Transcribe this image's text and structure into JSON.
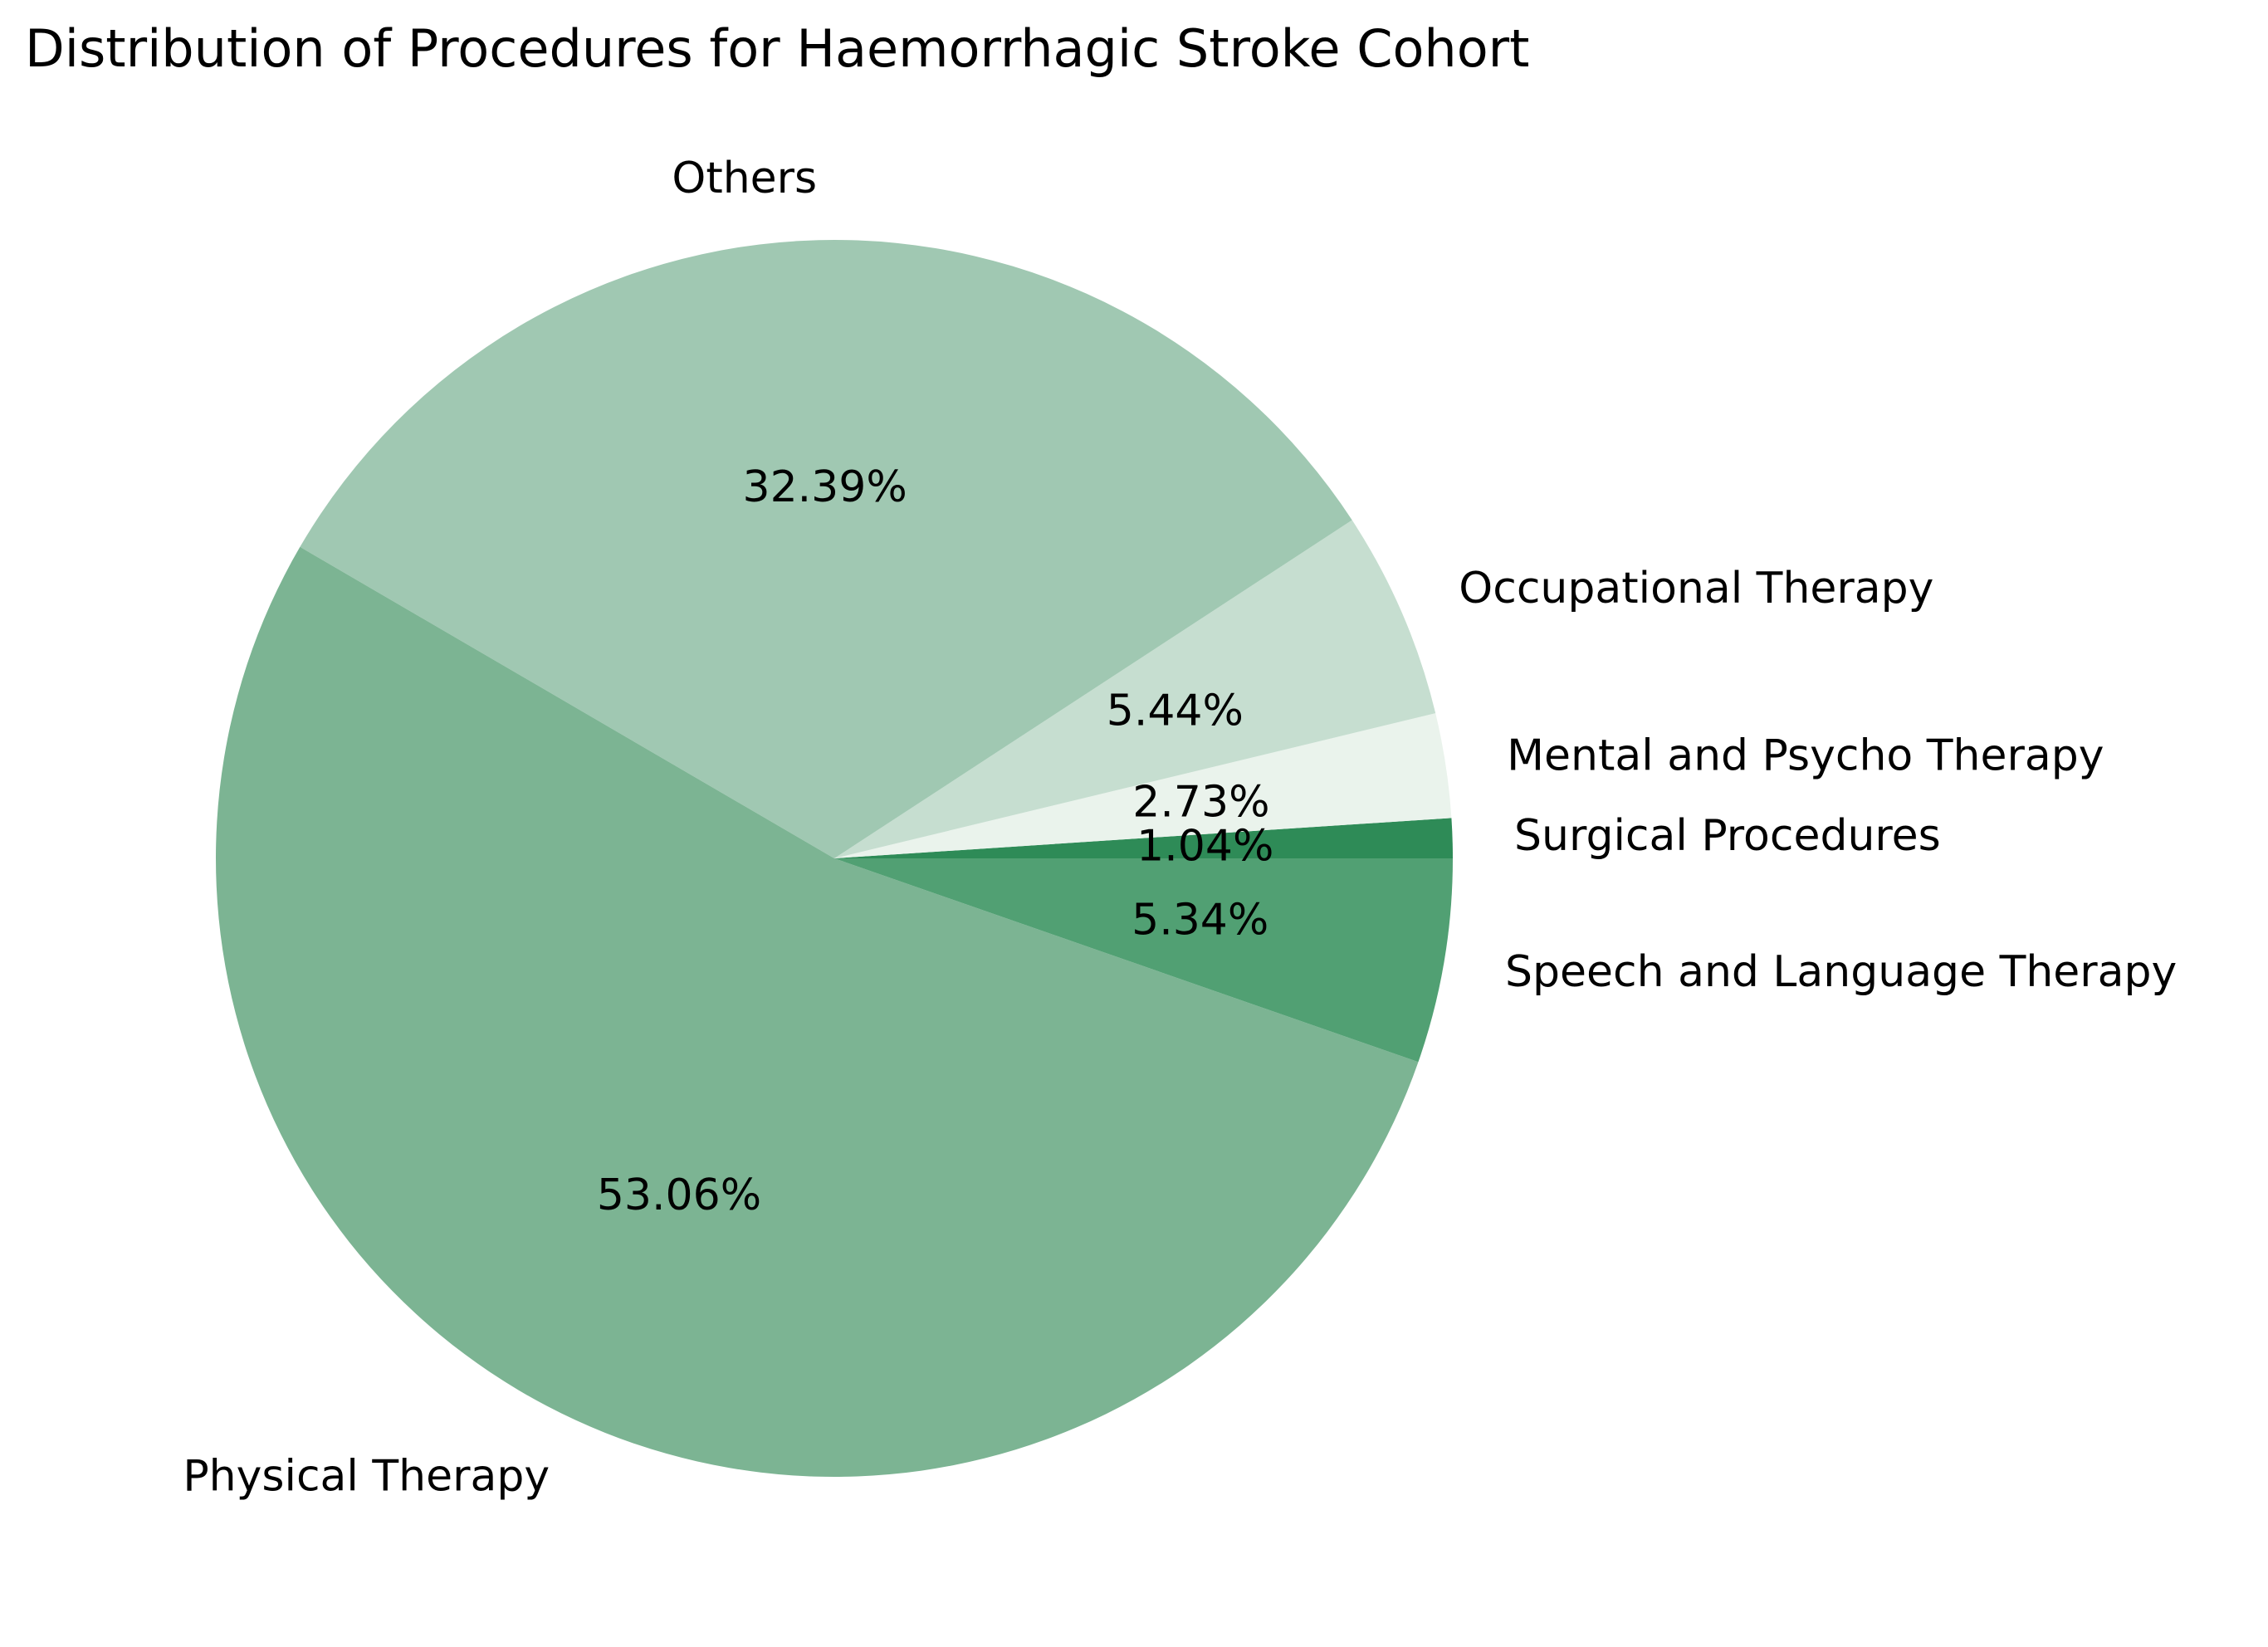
{
  "chart_data": {
    "type": "pie",
    "title": "Distribution of Procedures for Haemorrhagic Stroke Cohort",
    "slices": [
      {
        "label": "Surgical Procedures",
        "value": 1.04,
        "pct_label": "1.04%",
        "color": "#2e8b57"
      },
      {
        "label": "Mental and Psycho Therapy",
        "value": 2.73,
        "pct_label": "2.73%",
        "color": "#eaf3ec"
      },
      {
        "label": "Occupational Therapy",
        "value": 5.44,
        "pct_label": "5.44%",
        "color": "#c6ded0"
      },
      {
        "label": "Others",
        "value": 32.39,
        "pct_label": "32.39%",
        "color": "#a0c8b2"
      },
      {
        "label": "Physical Therapy",
        "value": 53.06,
        "pct_label": "53.06%",
        "color": "#7cb493"
      },
      {
        "label": "Speech and Language Therapy",
        "value": 5.34,
        "pct_label": "5.34%",
        "color": "#51a073"
      }
    ],
    "start_angle_deg": 0,
    "direction": "counterclockwise",
    "legend": "none"
  }
}
